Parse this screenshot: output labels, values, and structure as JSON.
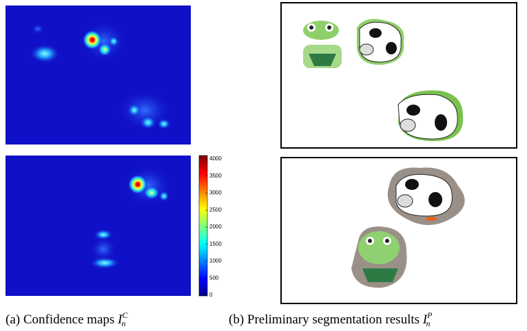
{
  "colorbar": {
    "lim": [
      0,
      4000
    ],
    "ticks": [
      0,
      500,
      1000,
      1500,
      2000,
      2500,
      3000,
      3500,
      4000
    ]
  },
  "captions": [
    {
      "text": "(a) Confidence maps",
      "symbol": "I",
      "sub": "n",
      "sup": "C"
    },
    {
      "text": "(b) Preliminary segmentation results",
      "symbol": "I",
      "sub": "n",
      "sup": "P"
    }
  ]
}
